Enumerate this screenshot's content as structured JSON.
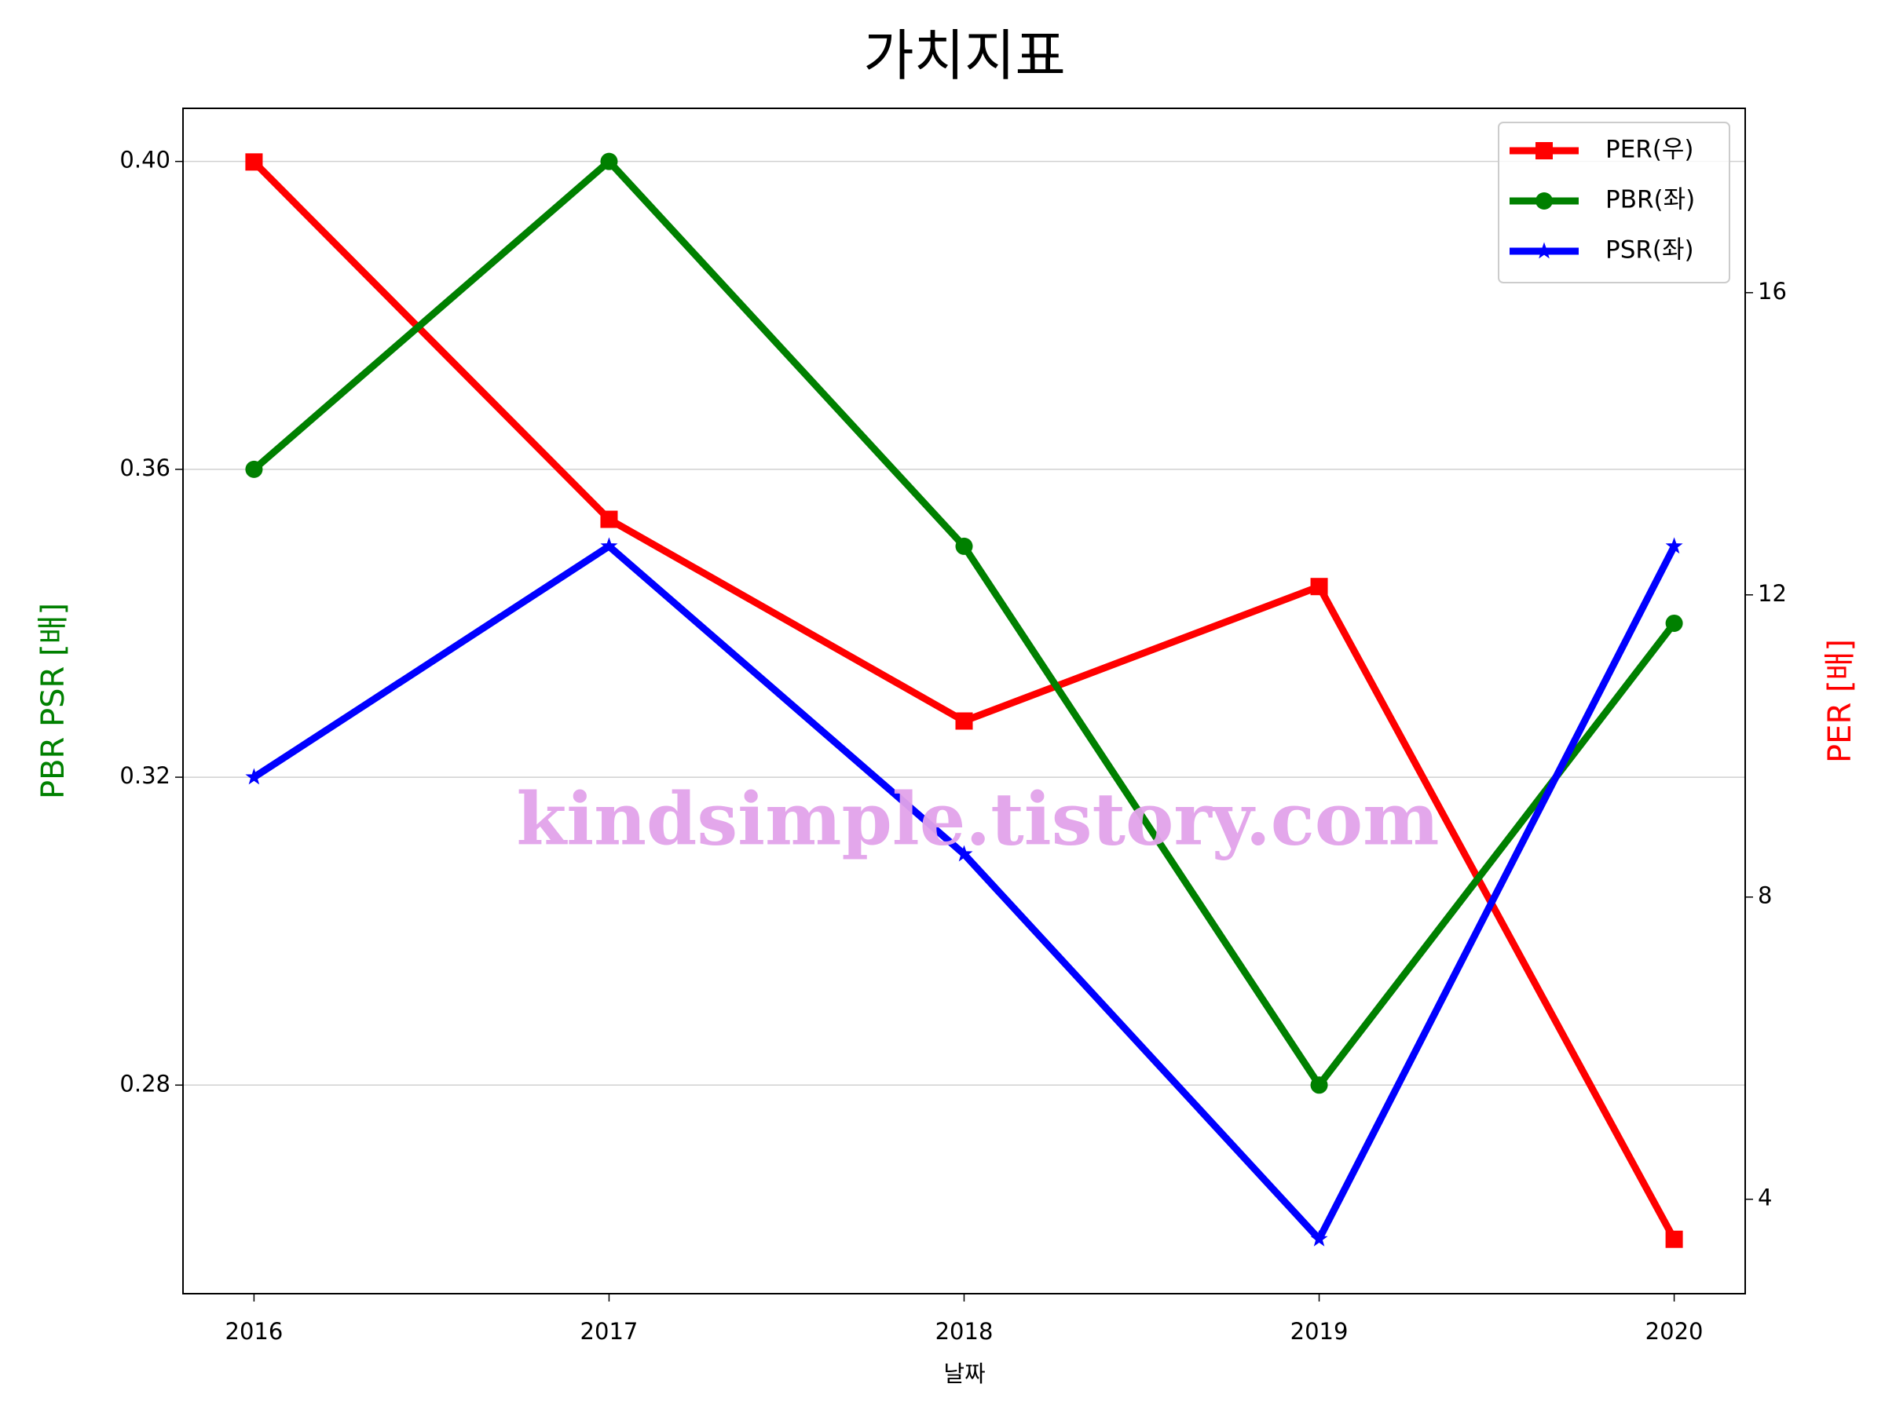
{
  "chart_data": {
    "type": "line",
    "title": "가치지표",
    "xlabel": "날짜",
    "ylabel": "PBR PSR [배]",
    "y2label": "PER [배]",
    "watermark": "kindsimple.tistory.com",
    "x": [
      2016,
      2017,
      2018,
      2019,
      2020
    ],
    "xlim": [
      2015.8,
      2020.2
    ],
    "xticks": [
      2016,
      2017,
      2018,
      2019,
      2020
    ],
    "ylim": [
      0.2529,
      0.4069
    ],
    "yticks": [
      0.28,
      0.32,
      0.36,
      {
        "value": 0.4,
        "label": "0.40"
      }
    ],
    "y2lim": [
      2.75,
      18.44
    ],
    "y2ticks": [
      4,
      8,
      12,
      16
    ],
    "grid": true,
    "legend": "upper right",
    "ylabel_color": "#008000",
    "y2label_color": "#ff0000",
    "series": [
      {
        "name": "PER(우)",
        "color": "#ff0000",
        "marker": "square",
        "axis": "y2",
        "values": [
          17.73,
          13.0,
          10.33,
          12.11,
          3.47
        ]
      },
      {
        "name": "PBR(좌)",
        "color": "#008000",
        "marker": "circle",
        "values": [
          0.36,
          0.4,
          0.35,
          0.28,
          0.34
        ]
      },
      {
        "name": "PSR(좌)",
        "color": "#0000ff",
        "marker": "star",
        "values": [
          0.32,
          0.35,
          0.31,
          0.26,
          0.35
        ]
      }
    ]
  }
}
